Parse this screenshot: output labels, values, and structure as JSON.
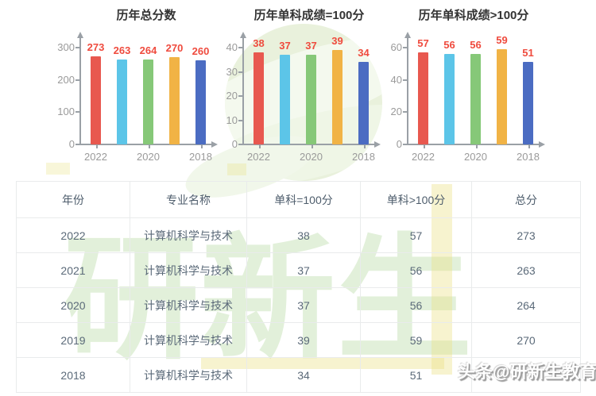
{
  "chart_colors": {
    "bars": [
      "#e8584f",
      "#5cc5e8",
      "#86c878",
      "#f1b345",
      "#4b6cc2"
    ],
    "value_label": "#ef4b3e"
  },
  "chart_data": [
    {
      "type": "bar",
      "title": "历年总分数",
      "categories": [
        "2022",
        "2021",
        "2020",
        "2019",
        "2018"
      ],
      "values": [
        273,
        263,
        264,
        270,
        260
      ],
      "x_tick_labels_shown": [
        "2022",
        "2020",
        "2018"
      ],
      "yticks": [
        0,
        100,
        200,
        300
      ],
      "ylim": [
        0,
        300
      ],
      "grid": false,
      "value_labels": true,
      "legend": "none"
    },
    {
      "type": "bar",
      "title": "历年单科成绩=100分",
      "categories": [
        "2022",
        "2021",
        "2020",
        "2019",
        "2018"
      ],
      "values": [
        38,
        37,
        37,
        39,
        34
      ],
      "x_tick_labels_shown": [
        "2022",
        "2020",
        "2018"
      ],
      "yticks": [
        0,
        10,
        20,
        30,
        40
      ],
      "ylim": [
        0,
        40
      ],
      "grid": false,
      "value_labels": true,
      "legend": "none"
    },
    {
      "type": "bar",
      "title": "历年单科成绩>100分",
      "categories": [
        "2022",
        "2021",
        "2020",
        "2019",
        "2018"
      ],
      "values": [
        57,
        56,
        56,
        59,
        51
      ],
      "x_tick_labels_shown": [
        "2022",
        "2020",
        "2018"
      ],
      "yticks": [
        0,
        20,
        40,
        60
      ],
      "ylim": [
        0,
        60
      ],
      "grid": false,
      "value_labels": true,
      "legend": "none"
    }
  ],
  "table": {
    "headers": [
      "年份",
      "专业名称",
      "单科=100分",
      "单科>100分",
      "总分"
    ],
    "rows": [
      [
        "2022",
        "计算机科学与技术",
        "38",
        "57",
        "273"
      ],
      [
        "2021",
        "计算机科学与技术",
        "37",
        "56",
        "263"
      ],
      [
        "2020",
        "计算机科学与技术",
        "37",
        "56",
        "264"
      ],
      [
        "2019",
        "计算机科学与技术",
        "39",
        "59",
        "270"
      ],
      [
        "2018",
        "计算机科学与技术",
        "34",
        "51",
        ""
      ]
    ]
  },
  "watermarks": {
    "big_text": "研新生",
    "badge_text": "头条@研新生教育"
  }
}
